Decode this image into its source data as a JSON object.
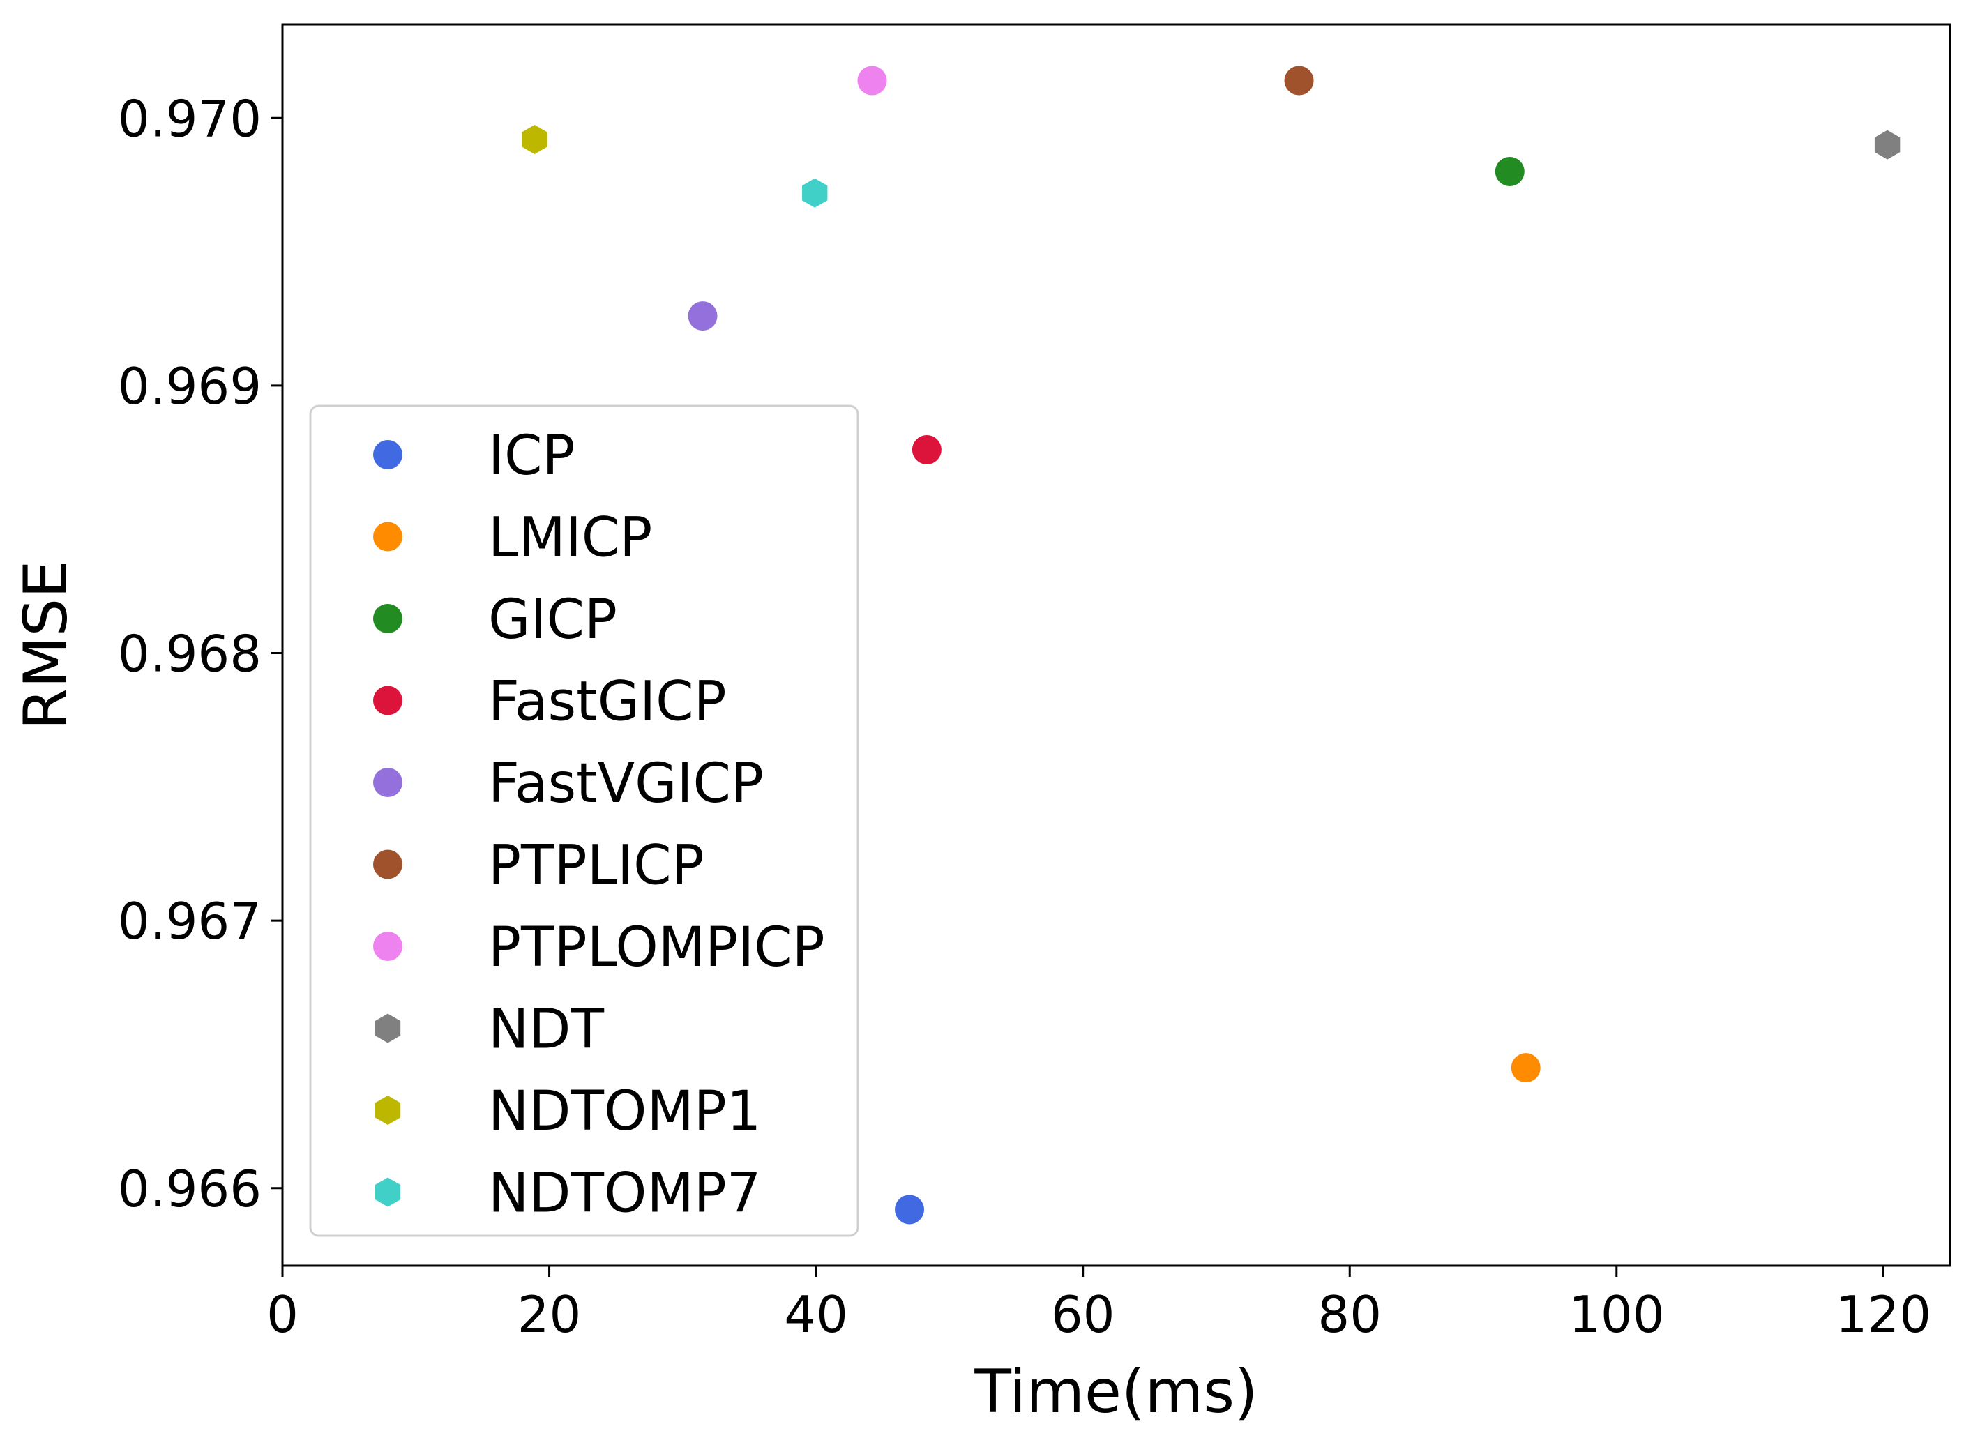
{
  "chart_data": {
    "type": "scatter",
    "title": "",
    "xlabel": "Time(ms)",
    "ylabel": "RMSE",
    "xlim": [
      0,
      125
    ],
    "ylim": [
      0.96571,
      0.97035
    ],
    "xticks": [
      0,
      20,
      40,
      60,
      80,
      100,
      120
    ],
    "yticks": [
      0.966,
      0.967,
      0.968,
      0.969,
      0.97
    ],
    "xtick_labels": [
      "0",
      "20",
      "40",
      "60",
      "80",
      "100",
      "120"
    ],
    "ytick_labels": [
      "0.966",
      "0.967",
      "0.968",
      "0.969",
      "0.970"
    ],
    "grid": false,
    "legend_position": "left",
    "series": [
      {
        "name": "ICP",
        "x": 47.0,
        "y": 0.96592,
        "color": "#4169E1",
        "marker": "circle"
      },
      {
        "name": "LMICP",
        "x": 93.2,
        "y": 0.96645,
        "color": "#FF8C00",
        "marker": "circle"
      },
      {
        "name": "GICP",
        "x": 92.0,
        "y": 0.9698,
        "color": "#228B22",
        "marker": "circle"
      },
      {
        "name": "FastGICP",
        "x": 48.3,
        "y": 0.96876,
        "color": "#DC143C",
        "marker": "circle"
      },
      {
        "name": "FastVGICP",
        "x": 31.5,
        "y": 0.96926,
        "color": "#9370DB",
        "marker": "circle"
      },
      {
        "name": "PTPLICP",
        "x": 76.2,
        "y": 0.97014,
        "color": "#A0522D",
        "marker": "circle"
      },
      {
        "name": "PTPLOMPICP",
        "x": 44.2,
        "y": 0.97014,
        "color": "#EE82EE",
        "marker": "circle"
      },
      {
        "name": "NDT",
        "x": 120.3,
        "y": 0.9699,
        "color": "#808080",
        "marker": "hexagon"
      },
      {
        "name": "NDTOMP1",
        "x": 18.9,
        "y": 0.96992,
        "color": "#BDB700",
        "marker": "hexagon"
      },
      {
        "name": "NDTOMP7",
        "x": 39.9,
        "y": 0.96972,
        "color": "#40D0C8",
        "marker": "hexagon"
      }
    ]
  }
}
